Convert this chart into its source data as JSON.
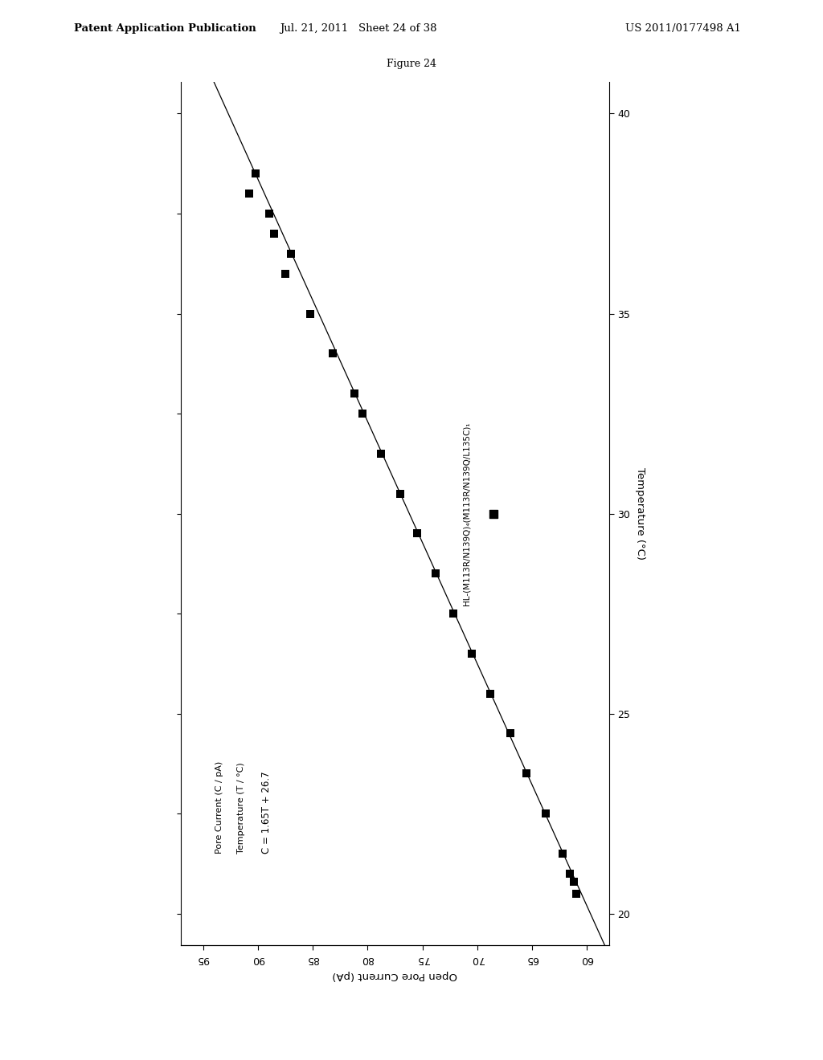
{
  "title": "Figure 24",
  "header_left": "Patent Application Publication",
  "header_center": "Jul. 21, 2011   Sheet 24 of 38",
  "header_right": "US 2011/0177498 A1",
  "xlabel": "Open Pore Current (pA)",
  "ylabel_right": "Temperature (°C)",
  "annotation_line1": "Pore Current (C / pA)",
  "annotation_line2": "Temperature (T / °C)",
  "annotation_line3": "C = 1.65T + 26.7",
  "legend_label": "HL-(M113R/N139Q)₄(M113R/N139Q/L135C)₁",
  "slope": 1.65,
  "intercept": 26.7,
  "temp_min": 20,
  "temp_max": 40,
  "current_min": 60,
  "current_max": 95,
  "data_points_temp": [
    38.5,
    38.0,
    37.5,
    37.0,
    36.5,
    36.0,
    35.0,
    34.0,
    33.0,
    32.5,
    31.5,
    30.5,
    29.5,
    28.5,
    27.5,
    26.5,
    25.5,
    24.5,
    23.5,
    22.5,
    21.5,
    21.0,
    20.8,
    20.5
  ],
  "data_points_current": [
    90.2,
    90.8,
    89.0,
    88.5,
    87.0,
    87.5,
    85.2,
    83.2,
    81.2,
    80.5,
    78.8,
    77.0,
    75.5,
    73.8,
    72.2,
    70.5,
    68.8,
    67.0,
    65.5,
    63.8,
    62.2,
    61.6,
    61.2,
    61.0
  ],
  "bg_color": "#ffffff",
  "data_color": "#000000",
  "line_color": "#000000",
  "fit_temp_range": [
    18.5,
    41.5
  ]
}
